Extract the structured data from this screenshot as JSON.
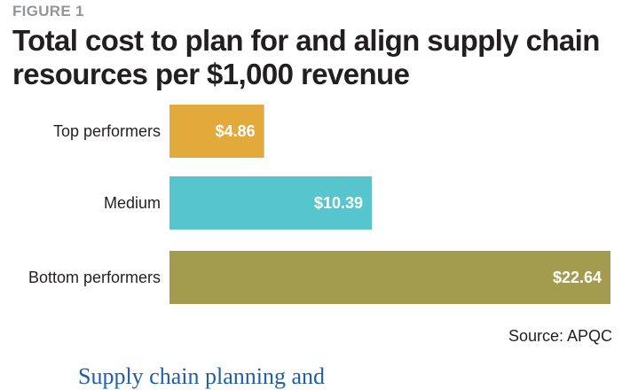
{
  "figure_label": "FIGURE 1",
  "source": "Source: APQC",
  "footer_cutoff_text": "Supply chain planning and",
  "chart_data": {
    "type": "bar",
    "orientation": "horizontal",
    "title": "Total cost to plan for and align supply chain resources per $1,000 revenue",
    "categories": [
      "Top performers",
      "Medium",
      "Bottom performers"
    ],
    "values": [
      4.86,
      10.39,
      22.64
    ],
    "value_labels": [
      "$4.86",
      "$10.39",
      "$22.64"
    ],
    "colors": [
      "#e2a93b",
      "#56c5cd",
      "#a39b4e"
    ],
    "xlim": [
      0,
      22.64
    ],
    "grid": false,
    "legend": "none"
  }
}
